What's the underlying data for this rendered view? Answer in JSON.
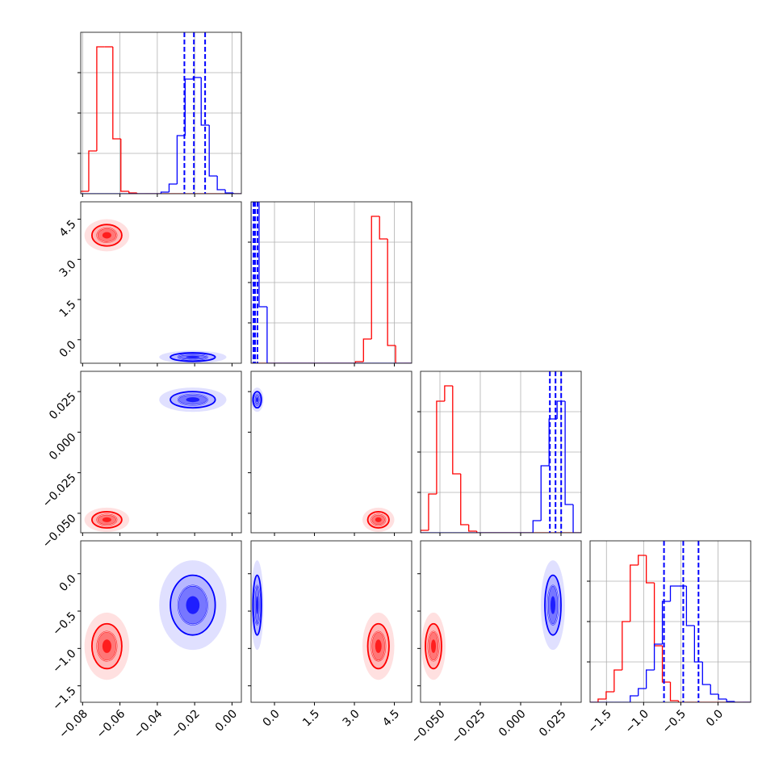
{
  "chart_data": {
    "type": "corner",
    "grid": true,
    "hist_ylim": [
      0,
      200
    ],
    "hist_yticks": [
      50,
      100,
      150
    ],
    "parameters": [
      {
        "lim": [
          -0.081,
          0.005
        ],
        "ticks": [
          {
            "value": -0.08,
            "label": "−0.08"
          },
          {
            "value": -0.06,
            "label": "−0.06"
          },
          {
            "value": -0.04,
            "label": "−0.04"
          },
          {
            "value": -0.02,
            "label": "−0.02"
          },
          {
            "value": 0,
            "label": "0.00"
          }
        ],
        "bins": [
          -0.081,
          -0.0767,
          -0.0724,
          -0.0681,
          -0.0638,
          -0.0595,
          -0.0552,
          -0.0509,
          -0.0466,
          -0.0423,
          -0.038,
          -0.0337,
          -0.0294,
          -0.0251,
          -0.0208,
          -0.0165,
          -0.0122,
          -0.0079,
          -0.0036,
          0.0007,
          0.005
        ]
      },
      {
        "lim": [
          -0.88,
          5.15
        ],
        "ticks": [
          {
            "value": 0,
            "label": "0.0"
          },
          1.5,
          {
            "value": 3,
            "label": "3.0"
          },
          4.5
        ],
        "bins": [
          -0.88,
          -0.5785,
          -0.277,
          0.0245,
          0.326,
          0.6275,
          0.929,
          1.2305,
          1.532,
          1.8335,
          2.135,
          2.4365,
          2.738,
          3.0395,
          3.341,
          3.6425,
          3.944,
          4.2455,
          4.547,
          4.8485,
          5.15
        ]
      },
      {
        "lim": [
          -0.062,
          0.0375
        ],
        "ticks": [
          {
            "value": -0.05,
            "label": "−0.050"
          },
          {
            "value": -0.025,
            "label": "−0.025"
          },
          {
            "value": 0,
            "label": "0.000"
          },
          {
            "value": 0.025,
            "label": "0.025"
          }
        ],
        "bins": [
          -0.062,
          -0.057025,
          -0.05205,
          -0.047075,
          -0.0421,
          -0.037125,
          -0.03215,
          -0.027175,
          -0.0222,
          -0.017225,
          -0.01225,
          -0.007275,
          -0.0023,
          0.002675,
          0.00765,
          0.012625,
          0.0176,
          0.022575,
          0.02755,
          0.032525,
          0.0375
        ]
      },
      {
        "lim": [
          -1.72,
          0.44
        ],
        "ticks": [
          {
            "value": -1.5,
            "label": "−1.5"
          },
          {
            "value": -1,
            "label": "−1.0"
          },
          {
            "value": -0.5,
            "label": "−0.5"
          },
          {
            "value": 0,
            "label": "0.0"
          }
        ],
        "bins": [
          -1.72,
          -1.612,
          -1.504,
          -1.396,
          -1.288,
          -1.18,
          -1.072,
          -0.964,
          -0.856,
          -0.748,
          -0.64,
          -0.532,
          -0.424,
          -0.316,
          -0.208,
          -0.1,
          0.008,
          0.116,
          0.224,
          0.332,
          0.44
        ]
      }
    ],
    "series": [
      {
        "color": "#ff0000",
        "counts": [
          [
            3,
            53,
            182,
            182,
            68,
            3,
            1,
            0,
            0,
            0,
            0,
            0,
            0,
            0,
            0,
            0,
            0,
            0,
            0,
            0
          ],
          [
            0,
            0,
            0,
            0,
            0,
            0,
            0,
            0,
            0,
            0,
            0,
            0,
            0,
            2,
            30,
            182,
            154,
            22,
            0,
            0
          ],
          [
            3,
            48,
            163,
            182,
            73,
            10,
            2,
            0,
            0,
            0,
            0,
            0,
            0,
            0,
            0,
            0,
            0,
            0,
            0,
            0
          ],
          [
            0,
            4,
            13,
            40,
            100,
            170,
            182,
            148,
            70,
            25,
            2,
            0,
            0,
            0,
            0,
            0,
            0,
            0,
            0,
            0
          ]
        ],
        "mean": [
          -0.067,
          3.9,
          -0.054,
          -0.97
        ],
        "std": [
          0.004,
          0.2,
          0.0025,
          0.15
        ]
      },
      {
        "color": "#0000ff",
        "counts": [
          [
            0,
            0,
            0,
            0,
            0,
            0,
            0,
            0,
            0,
            0,
            2,
            12,
            72,
            142,
            144,
            85,
            22,
            5,
            1,
            0
          ],
          [
            200,
            70,
            0,
            0,
            0,
            0,
            0,
            0,
            0,
            0,
            0,
            0,
            0,
            0,
            0,
            0,
            0,
            0,
            0,
            0
          ],
          [
            0,
            0,
            0,
            0,
            0,
            0,
            0,
            0,
            0,
            0,
            0,
            0,
            0,
            0,
            15,
            83,
            141,
            163,
            35,
            0
          ],
          [
            0,
            0,
            0,
            0,
            0,
            8,
            17,
            40,
            72,
            125,
            144,
            144,
            95,
            50,
            22,
            10,
            4,
            1,
            0,
            0
          ]
        ],
        "mean": [
          -0.021,
          -0.65,
          0.02,
          -0.42
        ],
        "std": [
          0.006,
          0.08,
          0.0025,
          0.2
        ],
        "quantiles": [
          [
            -0.0255,
            -0.0204,
            -0.0144
          ],
          [
            -0.79,
            -0.73,
            -0.64
          ],
          [
            0.0181,
            0.0216,
            0.0251
          ],
          [
            -0.726,
            -0.467,
            -0.262
          ]
        ]
      }
    ]
  }
}
